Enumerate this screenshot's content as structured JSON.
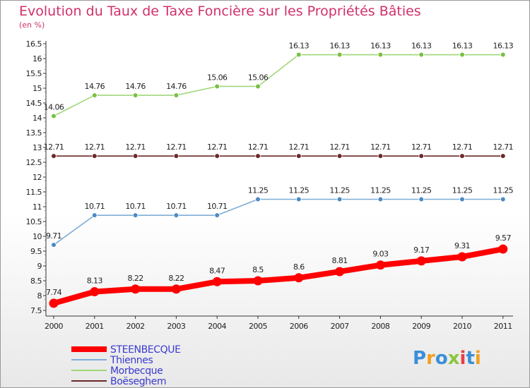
{
  "chart_data": {
    "type": "line",
    "title": "Evolution du Taux de Taxe Foncière sur les Propriétés Bâties",
    "ylabel": "(en %)",
    "xlabel": "",
    "x": [
      "2000",
      "2001",
      "2002",
      "2003",
      "2004",
      "2005",
      "2006",
      "2007",
      "2008",
      "2009",
      "2010",
      "2011"
    ],
    "ylim": [
      7.5,
      16.5
    ],
    "yticks": [
      "7.5",
      "8",
      "8.5",
      "9",
      "9.5",
      "10",
      "10.5",
      "11",
      "11.5",
      "12",
      "12.5",
      "13",
      "13.5",
      "14",
      "14.5",
      "15",
      "15.5",
      "16",
      "16.5"
    ],
    "grid": false,
    "legend_position": "bottom-left",
    "series": [
      {
        "name": "STEENBECQUE",
        "color": "#ff0000",
        "marker": "#ff0000",
        "values": [
          7.74,
          8.13,
          8.22,
          8.22,
          8.47,
          8.5,
          8.6,
          8.81,
          9.03,
          9.17,
          9.31,
          9.57
        ],
        "labels": [
          "7.74",
          "8.13",
          "8.22",
          "8.22",
          "8.47",
          "8.5",
          "8.6",
          "8.81",
          "9.03",
          "9.17",
          "9.31",
          "9.57"
        ]
      },
      {
        "name": "Thiennes",
        "color": "#7eaed6",
        "marker": "#4a8ac4",
        "values": [
          9.71,
          10.71,
          10.71,
          10.71,
          10.71,
          11.25,
          11.25,
          11.25,
          11.25,
          11.25,
          11.25,
          11.25
        ],
        "labels": [
          "9.71",
          "10.71",
          "10.71",
          "10.71",
          "10.71",
          "11.25",
          "11.25",
          "11.25",
          "11.25",
          "11.25",
          "11.25",
          "11.25"
        ]
      },
      {
        "name": "Morbecque",
        "color": "#9fd77a",
        "marker": "#7ac043",
        "values": [
          14.06,
          14.76,
          14.76,
          14.76,
          15.06,
          15.06,
          16.13,
          16.13,
          16.13,
          16.13,
          16.13,
          16.13
        ],
        "labels": [
          "14.06",
          "14.76",
          "14.76",
          "14.76",
          "15.06",
          "15.06",
          "16.13",
          "16.13",
          "16.13",
          "16.13",
          "16.13",
          "16.13"
        ]
      },
      {
        "name": "Boëseghem",
        "color": "#6b2a2a",
        "marker": "#6b2a2a",
        "values": [
          12.71,
          12.71,
          12.71,
          12.71,
          12.71,
          12.71,
          12.71,
          12.71,
          12.71,
          12.71,
          12.71,
          12.71
        ],
        "labels": [
          "12.71",
          "12.71",
          "12.71",
          "12.71",
          "12.71",
          "12.71",
          "12.71",
          "12.71",
          "12.71",
          "12.71",
          "12.71",
          "12.71"
        ]
      }
    ]
  },
  "brand": {
    "name": "Proxiti",
    "letters": [
      "P",
      "r",
      "o",
      "x",
      "i",
      "t",
      "i"
    ],
    "colors": [
      "#3a8fd8",
      "#f0a020",
      "#3a8fd8",
      "#8bc53f",
      "#e84040",
      "#3a8fd8",
      "#f0a020"
    ]
  }
}
